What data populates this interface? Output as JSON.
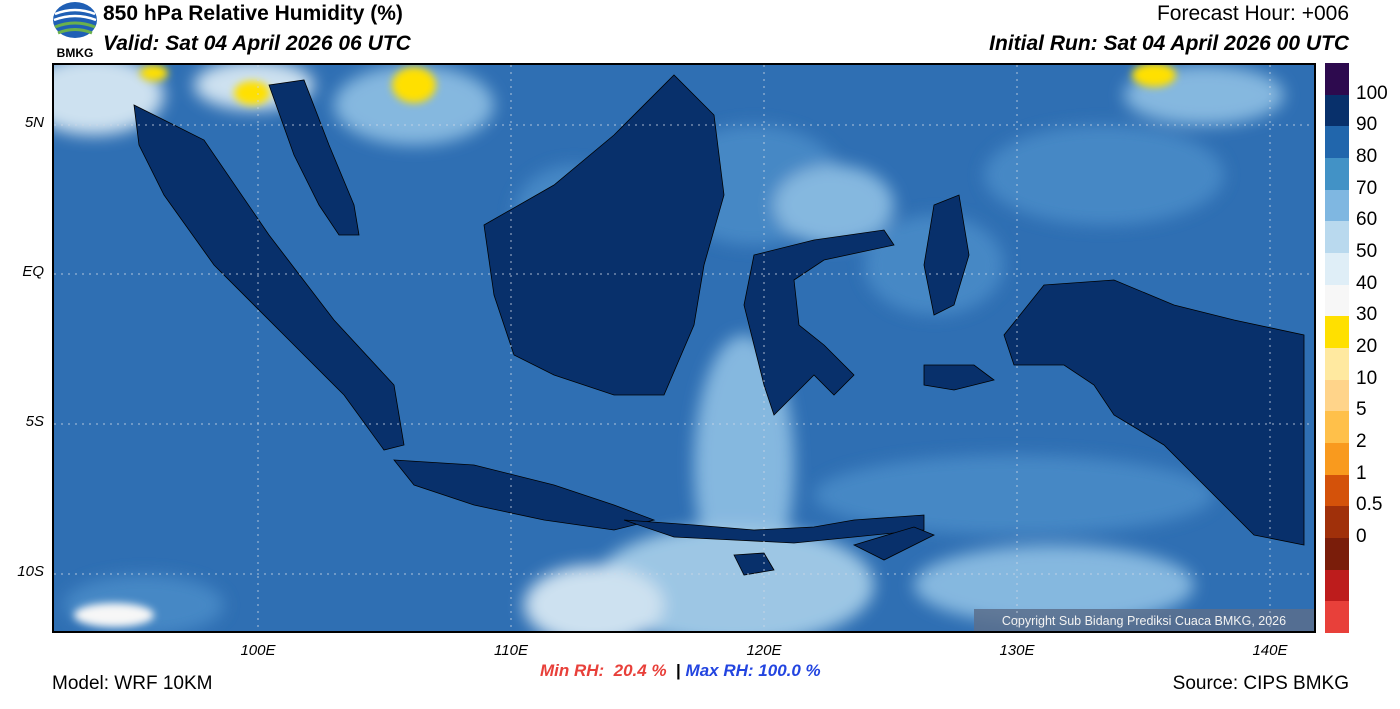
{
  "header": {
    "title": "850 hPa Relative Humidity (%)",
    "valid": "Valid: Sat 04 April 2026 06 UTC",
    "forecast_hour": "Forecast Hour: +006",
    "initial_run": "Initial Run: Sat 04 April 2026 00 UTC",
    "logo_text": "BMKG"
  },
  "map": {
    "lat_labels": [
      "5N",
      "EQ",
      "5S",
      "10S"
    ],
    "lon_labels": [
      "100E",
      "110E",
      "120E",
      "130E",
      "140E"
    ],
    "copyright": "Copyright Sub Bidang Prediksi Cuaca BMKG, 2026",
    "colors": {
      "ocean_dark": "#2f6fb3",
      "ocean_mid": "#4a8bc8",
      "land_humid": "#08306b",
      "dry": "#ffe000"
    }
  },
  "colorbar": {
    "labels": [
      "100",
      "90",
      "80",
      "70",
      "60",
      "50",
      "40",
      "30",
      "20",
      "10",
      "5",
      "2",
      "1",
      "0.5",
      "0"
    ],
    "colors": [
      "#2d0a4e",
      "#08306b",
      "#2166ac",
      "#4292c6",
      "#7fb7e1",
      "#b9d9ee",
      "#dfeef7",
      "#f7f7f7",
      "#ffe000",
      "#ffe9a0",
      "#ffd48a",
      "#ffc04a",
      "#f99a1e",
      "#d4520a",
      "#a0300a",
      "#7a1d0a",
      "#bd1c1c",
      "#e8403a"
    ]
  },
  "stats": {
    "min_rh": "Min RH:  20.4 %",
    "separator": "|",
    "max_rh": "Max RH: 100.0 %"
  },
  "footer": {
    "model": "Model: WRF 10KM",
    "source": "Source: CIPS BMKG"
  }
}
